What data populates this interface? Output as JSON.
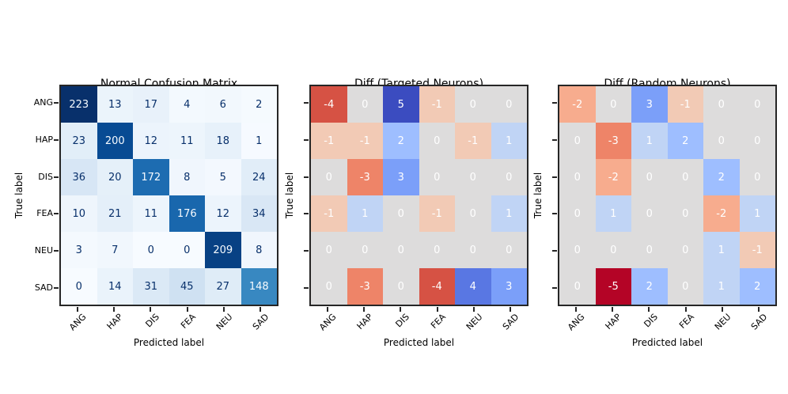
{
  "figure": {
    "classes": [
      "ANG",
      "HAP",
      "DIS",
      "FEA",
      "NEU",
      "SAD"
    ],
    "x_axis_label": "Predicted label",
    "y_axis_label": "True label"
  },
  "chart_data": [
    {
      "type": "heatmap",
      "title": "Normal Confusion Matrix",
      "xlabel": "Predicted label",
      "ylabel": "True label",
      "x_categories": [
        "ANG",
        "HAP",
        "DIS",
        "FEA",
        "NEU",
        "SAD"
      ],
      "y_categories": [
        "ANG",
        "HAP",
        "DIS",
        "FEA",
        "NEU",
        "SAD"
      ],
      "values": [
        [
          223,
          13,
          17,
          4,
          6,
          2
        ],
        [
          23,
          200,
          12,
          11,
          18,
          1
        ],
        [
          36,
          20,
          172,
          8,
          5,
          24
        ],
        [
          10,
          21,
          11,
          176,
          12,
          34
        ],
        [
          3,
          7,
          0,
          0,
          209,
          8
        ],
        [
          0,
          14,
          31,
          45,
          27,
          148
        ]
      ],
      "colormap": "blues",
      "vmin": 0,
      "vmax": 223,
      "annotation_rule": "contrast",
      "show_y_tick_labels": true,
      "grid": false,
      "legend": "none"
    },
    {
      "type": "heatmap",
      "title": "Diff (Targeted Neurons)",
      "xlabel": "Predicted label",
      "ylabel": "True label",
      "x_categories": [
        "ANG",
        "HAP",
        "DIS",
        "FEA",
        "NEU",
        "SAD"
      ],
      "y_categories": [
        "ANG",
        "HAP",
        "DIS",
        "FEA",
        "NEU",
        "SAD"
      ],
      "values": [
        [
          -4,
          0,
          5,
          -1,
          0,
          0
        ],
        [
          -1,
          -1,
          2,
          0,
          -1,
          1
        ],
        [
          0,
          -3,
          3,
          0,
          0,
          0
        ],
        [
          -1,
          1,
          0,
          -1,
          0,
          1
        ],
        [
          0,
          0,
          0,
          0,
          0,
          0
        ],
        [
          0,
          -3,
          0,
          -4,
          4,
          3
        ]
      ],
      "colormap": "coolwarm_r",
      "vmin": -5,
      "vmax": 5,
      "annotation_rule": "always_light",
      "show_y_tick_labels": false,
      "grid": false,
      "legend": "none"
    },
    {
      "type": "heatmap",
      "title": "Diff (Random Neurons)",
      "xlabel": "Predicted label",
      "ylabel": "True label",
      "x_categories": [
        "ANG",
        "HAP",
        "DIS",
        "FEA",
        "NEU",
        "SAD"
      ],
      "y_categories": [
        "ANG",
        "HAP",
        "DIS",
        "FEA",
        "NEU",
        "SAD"
      ],
      "values": [
        [
          -2,
          0,
          3,
          -1,
          0,
          0
        ],
        [
          0,
          -3,
          1,
          2,
          0,
          0
        ],
        [
          0,
          -2,
          0,
          0,
          2,
          0
        ],
        [
          0,
          1,
          0,
          0,
          -2,
          1
        ],
        [
          0,
          0,
          0,
          0,
          1,
          -1
        ],
        [
          0,
          -5,
          2,
          0,
          1,
          2
        ]
      ],
      "colormap": "coolwarm_r",
      "vmin": -5,
      "vmax": 5,
      "annotation_rule": "always_light",
      "show_y_tick_labels": false,
      "grid": false,
      "legend": "none"
    }
  ],
  "colors": {
    "background": "#ffffff",
    "spine": "#262626",
    "tick_mark": "#262626",
    "axis_text": "#000000",
    "annotation_dark": "#08306b",
    "annotation_light": "#f7fbff",
    "annotation_white": "#ffffff",
    "colormaps": {
      "blues": [
        {
          "t": 0.0,
          "c": "#f7fbff"
        },
        {
          "t": 0.125,
          "c": "#deebf7"
        },
        {
          "t": 0.25,
          "c": "#c6dbef"
        },
        {
          "t": 0.375,
          "c": "#9ecae1"
        },
        {
          "t": 0.5,
          "c": "#6baed6"
        },
        {
          "t": 0.625,
          "c": "#4292c6"
        },
        {
          "t": 0.75,
          "c": "#2171b5"
        },
        {
          "t": 0.875,
          "c": "#08519c"
        },
        {
          "t": 1.0,
          "c": "#08306b"
        }
      ],
      "coolwarm_r": [
        {
          "t": 0.0,
          "c": "#b40426"
        },
        {
          "t": 0.1,
          "c": "#d65244"
        },
        {
          "t": 0.2,
          "c": "#ee8468"
        },
        {
          "t": 0.3,
          "c": "#f7ac8e"
        },
        {
          "t": 0.4,
          "c": "#f2cab5"
        },
        {
          "t": 0.5,
          "c": "#dddcdc"
        },
        {
          "t": 0.6,
          "c": "#c0d4f5"
        },
        {
          "t": 0.7,
          "c": "#9ebeff"
        },
        {
          "t": 0.8,
          "c": "#7b9ff9"
        },
        {
          "t": 0.9,
          "c": "#5977e3"
        },
        {
          "t": 1.0,
          "c": "#3b4cc0"
        }
      ]
    }
  }
}
